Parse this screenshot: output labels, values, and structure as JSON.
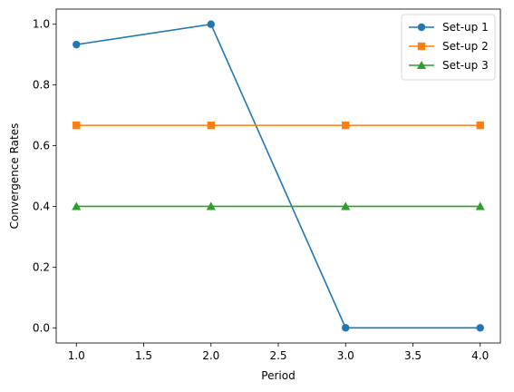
{
  "chart_data": {
    "type": "line",
    "xlabel": "Period",
    "ylabel": "Convergence Rates",
    "xlim": [
      0.85,
      4.15
    ],
    "ylim": [
      -0.05,
      1.05
    ],
    "xticks": [
      1.0,
      1.5,
      2.0,
      2.5,
      3.0,
      3.5,
      4.0
    ],
    "xtick_labels": [
      "1.0",
      "1.5",
      "2.0",
      "2.5",
      "3.0",
      "3.5",
      "4.0"
    ],
    "yticks": [
      0.0,
      0.2,
      0.4,
      0.6,
      0.8,
      1.0
    ],
    "ytick_labels": [
      "0.0",
      "0.2",
      "0.4",
      "0.6",
      "0.8",
      "1.0"
    ],
    "grid": false,
    "legend_position": "top-right",
    "x": [
      1,
      2,
      3,
      4
    ],
    "series": [
      {
        "name": "Set-up 1",
        "values": [
          0.933,
          1.0,
          0.0,
          0.0
        ],
        "color": "#1f77b4",
        "marker": "circle"
      },
      {
        "name": "Set-up 2",
        "values": [
          0.667,
          0.667,
          0.667,
          0.667
        ],
        "color": "#ff7f0e",
        "marker": "square"
      },
      {
        "name": "Set-up 3",
        "values": [
          0.4,
          0.4,
          0.4,
          0.4
        ],
        "color": "#2ca02c",
        "marker": "triangle"
      }
    ]
  }
}
